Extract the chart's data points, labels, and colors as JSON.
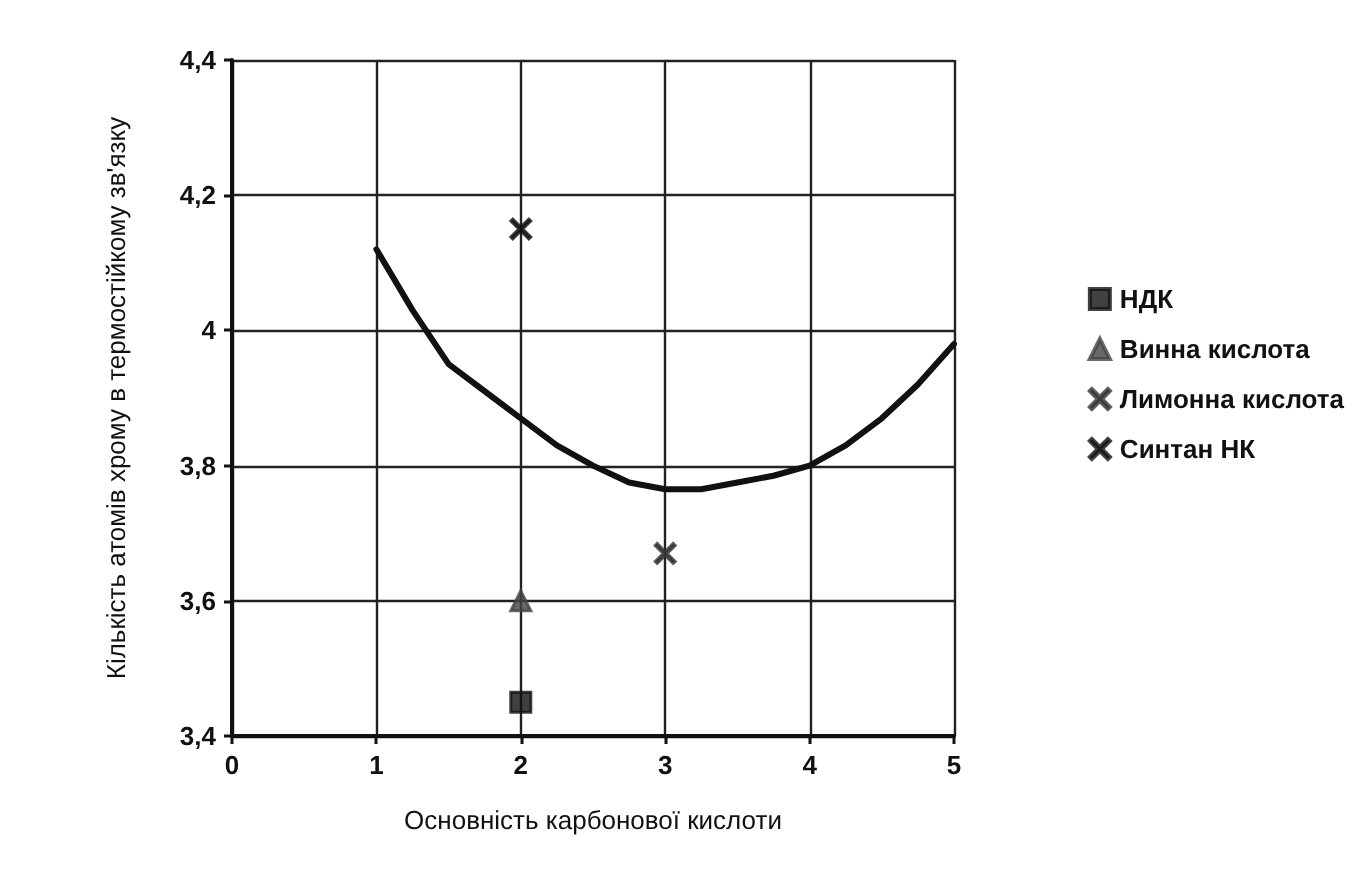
{
  "chart_data": {
    "type": "scatter",
    "xlabel": "Основність карбонової кислоти",
    "ylabel": "Кількість атомів хрому в термостійкому зв'язку",
    "xlim": [
      0,
      5
    ],
    "xticks": [
      0,
      1,
      2,
      3,
      4,
      5
    ],
    "ylim": [
      3.4,
      4.4
    ],
    "yticks": [
      {
        "value": 3.4,
        "label": "3,4"
      },
      {
        "value": 3.6,
        "label": "3,6"
      },
      {
        "value": 3.8,
        "label": "3,8"
      },
      4,
      {
        "value": 4.2,
        "label": "4,2"
      },
      {
        "value": 4.4,
        "label": "4,4"
      }
    ],
    "grid": true,
    "legend": "right",
    "series": [
      {
        "name": "НДК",
        "color": "#111111",
        "marker": "square",
        "x": [
          2
        ],
        "values": [
          3.45
        ]
      },
      {
        "name": "Винна кислота",
        "color": "#444444",
        "marker": "triangle",
        "x": [
          2
        ],
        "values": [
          3.6
        ]
      },
      {
        "name": "Лимонна кислота",
        "color": "#333333",
        "marker": "cross",
        "x": [
          3
        ],
        "values": [
          3.67
        ]
      },
      {
        "name": "Синтан НК",
        "color": "#111111",
        "marker": "cross",
        "x": [
          2
        ],
        "values": [
          4.15
        ]
      },
      {
        "type": "line",
        "color": "#111111",
        "marker": "none",
        "x": [
          1,
          1.25,
          1.5,
          1.75,
          2,
          2.25,
          2.5,
          2.75,
          3,
          3.25,
          3.5,
          3.75,
          4,
          4.25,
          4.5,
          4.75,
          5
        ],
        "values": [
          4.12,
          4.03,
          3.95,
          3.91,
          3.87,
          3.83,
          3.8,
          3.775,
          3.765,
          3.765,
          3.775,
          3.785,
          3.8,
          3.83,
          3.87,
          3.92,
          3.98
        ]
      }
    ]
  }
}
